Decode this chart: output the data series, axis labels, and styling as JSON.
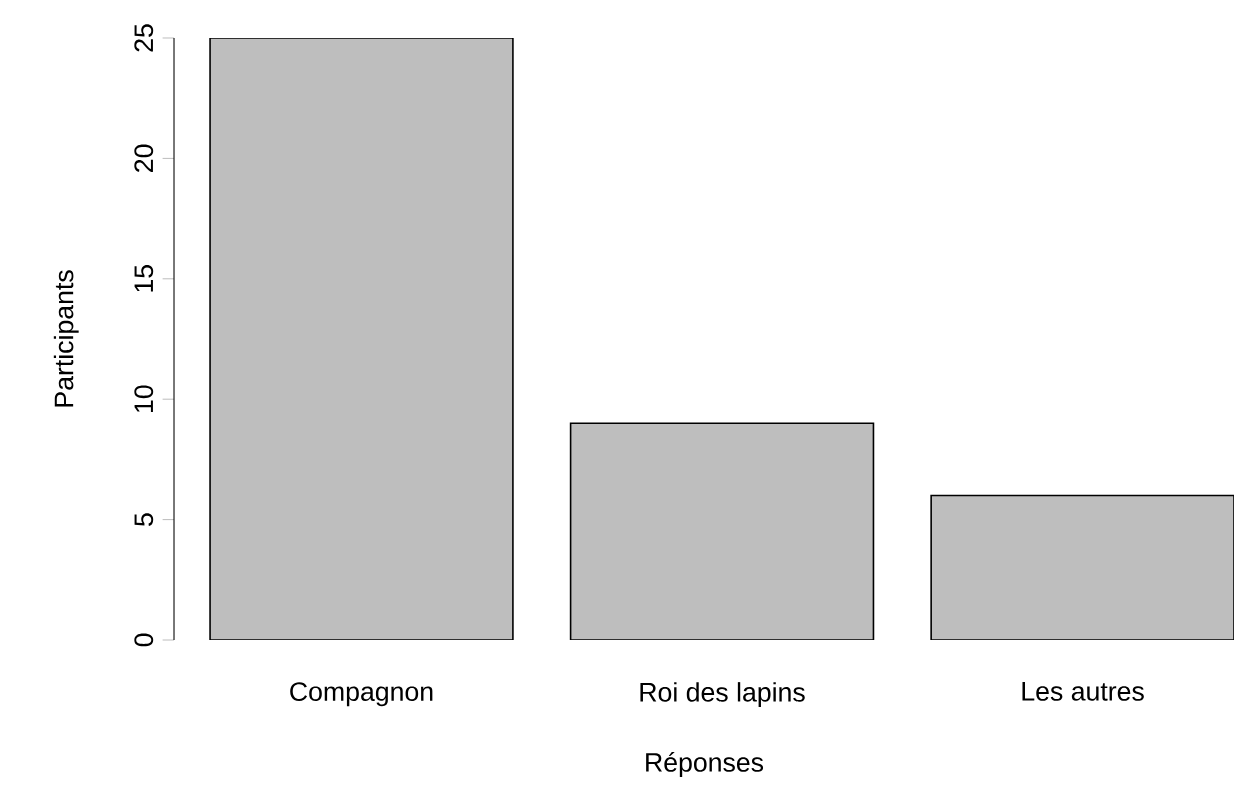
{
  "chart_data": {
    "type": "bar",
    "xlabel": "Réponses",
    "ylabel": "Participants",
    "categories": [
      "Compagnon",
      "Roi des lapins",
      "Les autres"
    ],
    "values": [
      25,
      9,
      6
    ],
    "color": "#bebebe",
    "ylim": [
      0,
      25
    ],
    "yticks": [
      0,
      5,
      10,
      15,
      20,
      25
    ]
  }
}
